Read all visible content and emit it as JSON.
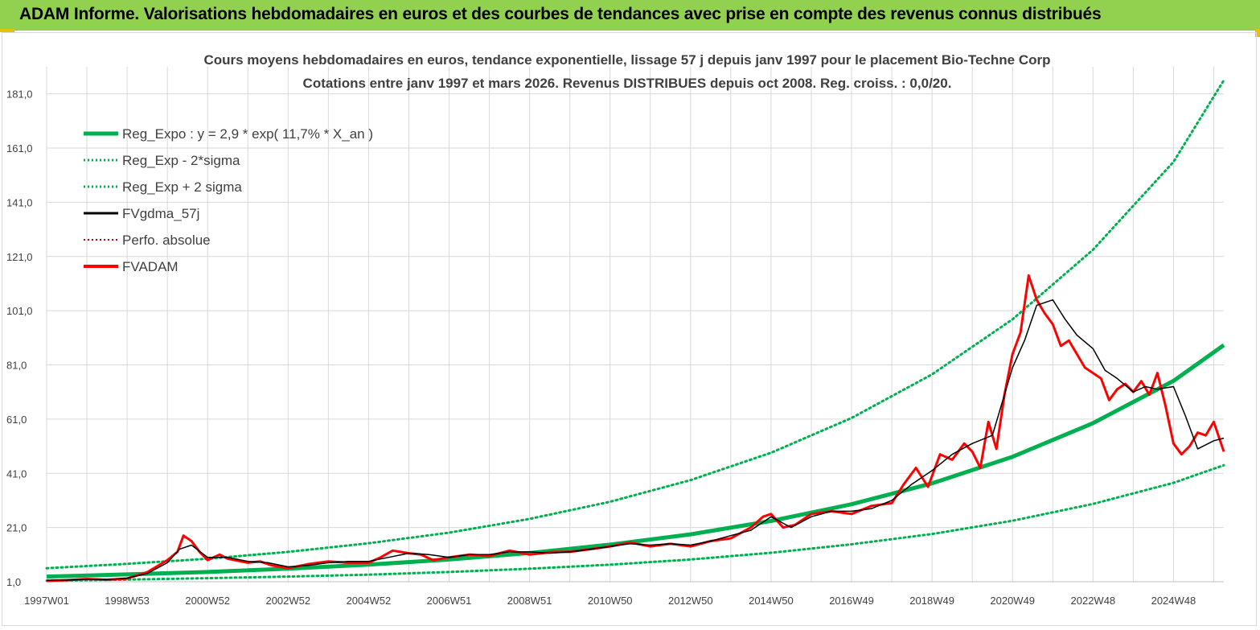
{
  "header": {
    "title": "ADAM Informe. Valorisations hebdomadaires en euros et des courbes de tendances avec prise en compte des revenus connus distribués"
  },
  "colors": {
    "banner": "#92d050",
    "reg_expo": "#00b050",
    "fvgdma": "#000000",
    "fvadam": "#ff0000",
    "grid": "#d9d9d9"
  },
  "chart_data": {
    "type": "line",
    "title": "Cours moyens hebdomadaires en euros, tendance exponentielle, lissage 57 j depuis janv 1997 pour le placement Bio-Techne Corp",
    "subtitle": "Cotations entre janv 1997 et mars 2026. Revenus DISTRIBUES depuis oct 2008. Reg. croiss. : 0,0/20.",
    "xlabel": "",
    "ylabel": "",
    "x_range": [
      1997.0,
      2026.25
    ],
    "ylim": [
      1.0,
      191.0
    ],
    "y_ticks": [
      "1,0",
      "21,0",
      "41,0",
      "61,0",
      "81,0",
      "101,0",
      "121,0",
      "141,0",
      "161,0",
      "181,0"
    ],
    "x_tick_labels": [
      "1997W01",
      "1998W53",
      "2000W52",
      "2002W52",
      "2004W52",
      "2006W51",
      "2008W51",
      "2010W50",
      "2012W50",
      "2014W50",
      "2016W49",
      "2018W49",
      "2020W49",
      "2022W48",
      "2024W48"
    ],
    "x_tick_years": [
      1997.0,
      1999.0,
      2001.0,
      2003.0,
      2005.0,
      2007.0,
      2009.0,
      2011.0,
      2013.0,
      2015.0,
      2017.0,
      2019.0,
      2021.0,
      2023.0,
      2025.0
    ],
    "grid": true,
    "legend_position": "top-left",
    "series": [
      {
        "name": "Reg_Expo : y = 2,9 * exp( 11,7% *  X_an )",
        "style": "solid-thick",
        "color": "#00b050",
        "x": [
          1997,
          1999,
          2001,
          2003,
          2005,
          2007,
          2009,
          2011,
          2013,
          2015,
          2017,
          2019,
          2021,
          2023,
          2025,
          2026.25
        ],
        "values": [
          2.9,
          3.7,
          4.6,
          5.8,
          7.3,
          9.2,
          11.6,
          14.7,
          18.5,
          23.4,
          29.6,
          37.3,
          47.1,
          59.5,
          75.1,
          88.3
        ]
      },
      {
        "name": "Reg_Exp - 2*sigma",
        "style": "dotted",
        "color": "#00b050",
        "x": [
          1997,
          1999,
          2001,
          2003,
          2005,
          2007,
          2009,
          2011,
          2013,
          2015,
          2017,
          2019,
          2021,
          2023,
          2025,
          2026.25
        ],
        "values": [
          1.4,
          1.8,
          2.3,
          2.9,
          3.6,
          4.6,
          5.8,
          7.3,
          9.2,
          11.7,
          14.8,
          18.6,
          23.5,
          29.7,
          37.5,
          44.0
        ]
      },
      {
        "name": "Reg_Exp + 2 sigma",
        "style": "dotted",
        "color": "#00b050",
        "x": [
          1997,
          1999,
          2001,
          2003,
          2005,
          2007,
          2009,
          2011,
          2013,
          2015,
          2017,
          2019,
          2021,
          2023,
          2025,
          2026.25
        ],
        "values": [
          6.0,
          7.6,
          9.5,
          12.0,
          15.2,
          19.1,
          24.2,
          30.5,
          38.5,
          48.6,
          61.4,
          77.5,
          97.8,
          123.5,
          155.9,
          186.0
        ]
      },
      {
        "name": "FVgdma_57j",
        "style": "solid",
        "color": "#000000",
        "x": [
          1997.0,
          1997.5,
          1998.0,
          1998.5,
          1999.0,
          1999.5,
          2000.0,
          2000.3,
          2000.6,
          2001.0,
          2001.5,
          2002.0,
          2002.5,
          2003.0,
          2003.5,
          2004.0,
          2004.5,
          2005.0,
          2005.5,
          2006.0,
          2006.5,
          2007.0,
          2007.5,
          2008.0,
          2008.5,
          2009.0,
          2009.5,
          2010.0,
          2010.5,
          2011.0,
          2011.5,
          2012.0,
          2012.5,
          2013.0,
          2013.5,
          2014.0,
          2014.5,
          2015.0,
          2015.5,
          2016.0,
          2016.5,
          2017.0,
          2017.5,
          2018.0,
          2018.5,
          2019.0,
          2019.5,
          2020.0,
          2020.5,
          2021.0,
          2021.3,
          2021.6,
          2022.0,
          2022.3,
          2022.6,
          2023.0,
          2023.3,
          2023.6,
          2024.0,
          2024.3,
          2024.6,
          2025.0,
          2025.3,
          2025.6,
          2026.0,
          2026.25
        ],
        "values": [
          1.5,
          1.6,
          1.9,
          1.8,
          2.3,
          4.0,
          8.0,
          13.0,
          14.5,
          10.0,
          10.0,
          8.5,
          8.0,
          6.5,
          7.0,
          8.0,
          8.5,
          8.5,
          10.0,
          11.5,
          11.0,
          10.0,
          11.0,
          11.0,
          12.0,
          12.0,
          11.5,
          12.0,
          13.0,
          14.0,
          15.0,
          14.5,
          15.0,
          14.5,
          16.0,
          18.0,
          20.0,
          25.0,
          21.0,
          25.0,
          27.0,
          27.0,
          28.0,
          31.0,
          37.0,
          42.0,
          48.0,
          52.0,
          55.0,
          80.0,
          90.0,
          103.0,
          105.0,
          98.0,
          92.0,
          87.0,
          79.0,
          76.0,
          71.0,
          73.0,
          72.0,
          73.0,
          62.0,
          50.0,
          53.0,
          54.0
        ]
      },
      {
        "name": "Perfo. absolue",
        "style": "dotted",
        "color": "#c00000",
        "x": [],
        "values": []
      },
      {
        "name": "FVADAM",
        "style": "solid-thick",
        "color": "#ff0000",
        "x": [
          1997.0,
          1997.5,
          1998.0,
          1998.5,
          1999.0,
          1999.5,
          2000.0,
          2000.25,
          2000.4,
          2000.6,
          2000.8,
          2001.0,
          2001.3,
          2001.5,
          2002.0,
          2002.3,
          2002.6,
          2003.0,
          2003.5,
          2004.0,
          2004.5,
          2005.0,
          2005.3,
          2005.6,
          2006.0,
          2006.3,
          2006.6,
          2007.0,
          2007.5,
          2008.0,
          2008.5,
          2009.0,
          2009.3,
          2009.6,
          2010.0,
          2010.5,
          2011.0,
          2011.5,
          2012.0,
          2012.5,
          2013.0,
          2013.5,
          2014.0,
          2014.5,
          2014.8,
          2015.0,
          2015.3,
          2015.6,
          2016.0,
          2016.5,
          2017.0,
          2017.5,
          2018.0,
          2018.3,
          2018.6,
          2018.9,
          2019.2,
          2019.5,
          2019.8,
          2020.0,
          2020.2,
          2020.4,
          2020.6,
          2020.8,
          2021.0,
          2021.2,
          2021.4,
          2021.6,
          2021.8,
          2022.0,
          2022.2,
          2022.4,
          2022.6,
          2022.8,
          2023.0,
          2023.2,
          2023.4,
          2023.6,
          2023.8,
          2024.0,
          2024.2,
          2024.4,
          2024.6,
          2024.8,
          2025.0,
          2025.2,
          2025.4,
          2025.6,
          2025.8,
          2026.0,
          2026.25
        ],
        "values": [
          1.3,
          1.6,
          2.0,
          1.7,
          2.2,
          4.5,
          9.0,
          12.0,
          18.0,
          16.0,
          12.0,
          9.0,
          11.0,
          9.5,
          8.0,
          8.5,
          7.0,
          6.0,
          7.5,
          8.5,
          8.0,
          8.0,
          10.0,
          12.5,
          11.5,
          11.0,
          9.0,
          10.0,
          11.0,
          10.5,
          12.5,
          11.0,
          11.5,
          12.0,
          12.0,
          13.0,
          14.0,
          15.5,
          14.0,
          15.0,
          14.0,
          16.0,
          17.0,
          21.0,
          25.0,
          26.0,
          21.0,
          22.0,
          26.0,
          27.0,
          26.0,
          29.0,
          30.0,
          37.0,
          43.0,
          36.0,
          48.0,
          46.0,
          52.0,
          49.0,
          43.0,
          60.0,
          50.0,
          70.0,
          85.0,
          93.0,
          114.0,
          105.0,
          100.0,
          96.0,
          88.0,
          90.0,
          85.0,
          80.0,
          78.0,
          76.0,
          68.0,
          72.0,
          74.0,
          71.0,
          75.0,
          70.0,
          78.0,
          66.0,
          52.0,
          48.0,
          51.0,
          56.0,
          55.0,
          60.0,
          49.0
        ]
      }
    ]
  }
}
